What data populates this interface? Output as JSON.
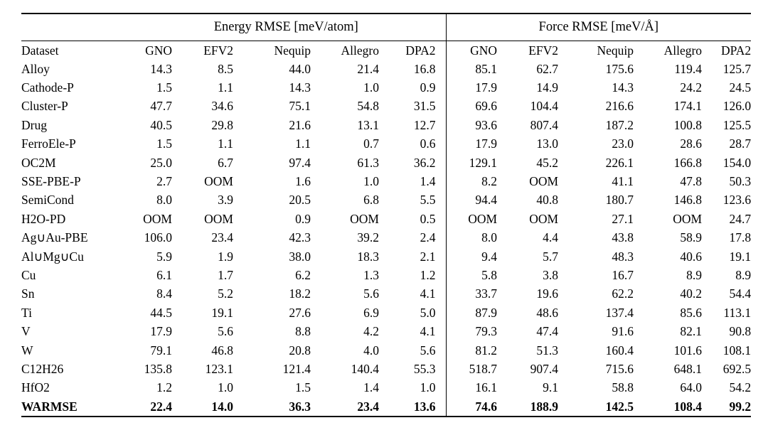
{
  "colors": {
    "text": "#000000",
    "rule": "#000000",
    "background": "#ffffff"
  },
  "table": {
    "group_headers": [
      {
        "label": "Energy RMSE [meV/atom]"
      },
      {
        "label": "Force RMSE [meV/Å]"
      }
    ],
    "dataset_col_header": "Dataset",
    "model_headers": [
      "GNO",
      "EFV2",
      "Nequip",
      "Allegro",
      "DPA2"
    ],
    "rows": [
      {
        "dataset": "Alloy",
        "bold": false,
        "energy": [
          "14.3",
          "8.5",
          "44.0",
          "21.4",
          "16.8"
        ],
        "force": [
          "85.1",
          "62.7",
          "175.6",
          "119.4",
          "125.7"
        ]
      },
      {
        "dataset": "Cathode-P",
        "bold": false,
        "energy": [
          "1.5",
          "1.1",
          "14.3",
          "1.0",
          "0.9"
        ],
        "force": [
          "17.9",
          "14.9",
          "14.3",
          "24.2",
          "24.5"
        ]
      },
      {
        "dataset": "Cluster-P",
        "bold": false,
        "energy": [
          "47.7",
          "34.6",
          "75.1",
          "54.8",
          "31.5"
        ],
        "force": [
          "69.6",
          "104.4",
          "216.6",
          "174.1",
          "126.0"
        ]
      },
      {
        "dataset": "Drug",
        "bold": false,
        "energy": [
          "40.5",
          "29.8",
          "21.6",
          "13.1",
          "12.7"
        ],
        "force": [
          "93.6",
          "807.4",
          "187.2",
          "100.8",
          "125.5"
        ]
      },
      {
        "dataset": "FerroEle-P",
        "bold": false,
        "energy": [
          "1.5",
          "1.1",
          "1.1",
          "0.7",
          "0.6"
        ],
        "force": [
          "17.9",
          "13.0",
          "23.0",
          "28.6",
          "28.7"
        ]
      },
      {
        "dataset": "OC2M",
        "bold": false,
        "energy": [
          "25.0",
          "6.7",
          "97.4",
          "61.3",
          "36.2"
        ],
        "force": [
          "129.1",
          "45.2",
          "226.1",
          "166.8",
          "154.0"
        ]
      },
      {
        "dataset": "SSE-PBE-P",
        "bold": false,
        "energy": [
          "2.7",
          "OOM",
          "1.6",
          "1.0",
          "1.4"
        ],
        "force": [
          "8.2",
          "OOM",
          "41.1",
          "47.8",
          "50.3"
        ]
      },
      {
        "dataset": "SemiCond",
        "bold": false,
        "energy": [
          "8.0",
          "3.9",
          "20.5",
          "6.8",
          "5.5"
        ],
        "force": [
          "94.4",
          "40.8",
          "180.7",
          "146.8",
          "123.6"
        ]
      },
      {
        "dataset": "H2O-PD",
        "bold": false,
        "energy": [
          "OOM",
          "OOM",
          "0.9",
          "OOM",
          "0.5"
        ],
        "force": [
          "OOM",
          "OOM",
          "27.1",
          "OOM",
          "24.7"
        ]
      },
      {
        "dataset": "Ag∪Au-PBE",
        "bold": false,
        "energy": [
          "106.0",
          "23.4",
          "42.3",
          "39.2",
          "2.4"
        ],
        "force": [
          "8.0",
          "4.4",
          "43.8",
          "58.9",
          "17.8"
        ]
      },
      {
        "dataset": "Al∪Mg∪Cu",
        "bold": false,
        "energy": [
          "5.9",
          "1.9",
          "38.0",
          "18.3",
          "2.1"
        ],
        "force": [
          "9.4",
          "5.7",
          "48.3",
          "40.6",
          "19.1"
        ]
      },
      {
        "dataset": "Cu",
        "bold": false,
        "energy": [
          "6.1",
          "1.7",
          "6.2",
          "1.3",
          "1.2"
        ],
        "force": [
          "5.8",
          "3.8",
          "16.7",
          "8.9",
          "8.9"
        ]
      },
      {
        "dataset": "Sn",
        "bold": false,
        "energy": [
          "8.4",
          "5.2",
          "18.2",
          "5.6",
          "4.1"
        ],
        "force": [
          "33.7",
          "19.6",
          "62.2",
          "40.2",
          "54.4"
        ]
      },
      {
        "dataset": "Ti",
        "bold": false,
        "energy": [
          "44.5",
          "19.1",
          "27.6",
          "6.9",
          "5.0"
        ],
        "force": [
          "87.9",
          "48.6",
          "137.4",
          "85.6",
          "113.1"
        ]
      },
      {
        "dataset": "V",
        "bold": false,
        "energy": [
          "17.9",
          "5.6",
          "8.8",
          "4.2",
          "4.1"
        ],
        "force": [
          "79.3",
          "47.4",
          "91.6",
          "82.1",
          "90.8"
        ]
      },
      {
        "dataset": "W",
        "bold": false,
        "energy": [
          "79.1",
          "46.8",
          "20.8",
          "4.0",
          "5.6"
        ],
        "force": [
          "81.2",
          "51.3",
          "160.4",
          "101.6",
          "108.1"
        ]
      },
      {
        "dataset": "C12H26",
        "bold": false,
        "energy": [
          "135.8",
          "123.1",
          "121.4",
          "140.4",
          "55.3"
        ],
        "force": [
          "518.7",
          "907.4",
          "715.6",
          "648.1",
          "692.5"
        ]
      },
      {
        "dataset": "HfO2",
        "bold": false,
        "energy": [
          "1.2",
          "1.0",
          "1.5",
          "1.4",
          "1.0"
        ],
        "force": [
          "16.1",
          "9.1",
          "58.8",
          "64.0",
          "54.2"
        ]
      },
      {
        "dataset": "WARMSE",
        "bold": true,
        "energy": [
          "22.4",
          "14.0",
          "36.3",
          "23.4",
          "13.6"
        ],
        "force": [
          "74.6",
          "188.9",
          "142.5",
          "108.4",
          "99.2"
        ]
      }
    ]
  }
}
